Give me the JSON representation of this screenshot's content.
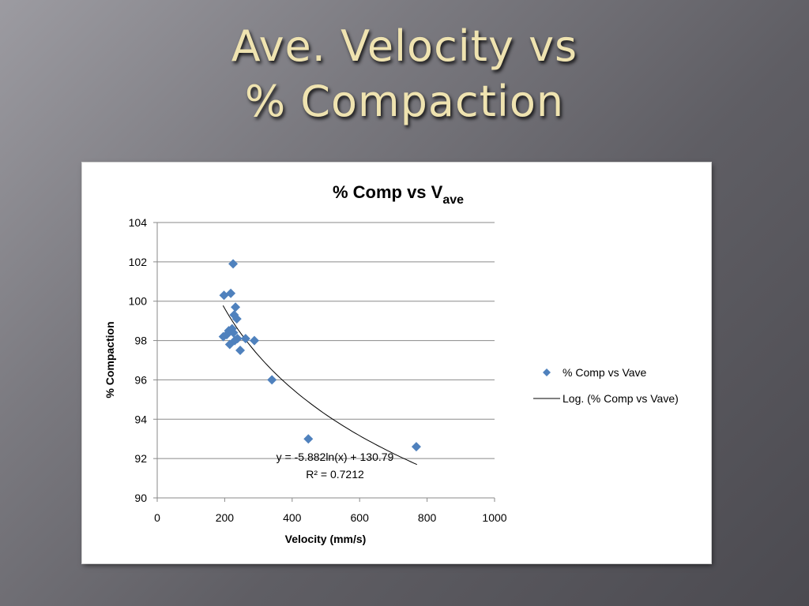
{
  "slide": {
    "title_line1": "Ave. Velocity vs",
    "title_line2": "% Compaction"
  },
  "colors": {
    "marker": "#4f81bd",
    "trendline": "#000000",
    "title_text": "#efe3b0"
  },
  "chart_data": {
    "type": "scatter",
    "title": "% Comp vs V",
    "title_subscript": "ave",
    "xlabel": "Velocity (mm/s)",
    "ylabel": "% Compaction",
    "xlim": [
      0,
      1000
    ],
    "ylim": [
      90,
      104
    ],
    "xticks": [
      0,
      200,
      400,
      600,
      800,
      1000
    ],
    "yticks": [
      90,
      92,
      94,
      96,
      98,
      100,
      102,
      104
    ],
    "grid": "horizontal",
    "legend_position": "right",
    "series": [
      {
        "name": "% Comp vs Vave",
        "marker": "diamond",
        "points": [
          [
            225,
            101.9
          ],
          [
            198,
            100.3
          ],
          [
            218,
            100.4
          ],
          [
            232,
            99.7
          ],
          [
            228,
            99.3
          ],
          [
            236,
            99.1
          ],
          [
            212,
            98.5
          ],
          [
            222,
            98.6
          ],
          [
            196,
            98.2
          ],
          [
            206,
            98.3
          ],
          [
            226,
            98.4
          ],
          [
            238,
            98.1
          ],
          [
            215,
            97.8
          ],
          [
            230,
            98.0
          ],
          [
            262,
            98.1
          ],
          [
            288,
            98.0
          ],
          [
            246,
            97.5
          ],
          [
            340,
            96.0
          ],
          [
            448,
            93.0
          ],
          [
            768,
            92.6
          ]
        ]
      }
    ],
    "trendline": {
      "name": "Log. (% Comp vs Vave)",
      "type": "logarithmic",
      "a": -5.882,
      "b": 130.79,
      "x_range": [
        195,
        770
      ],
      "equation": "y = -5.882ln(x) + 130.79",
      "r_squared": "R² = 0.7212"
    }
  }
}
